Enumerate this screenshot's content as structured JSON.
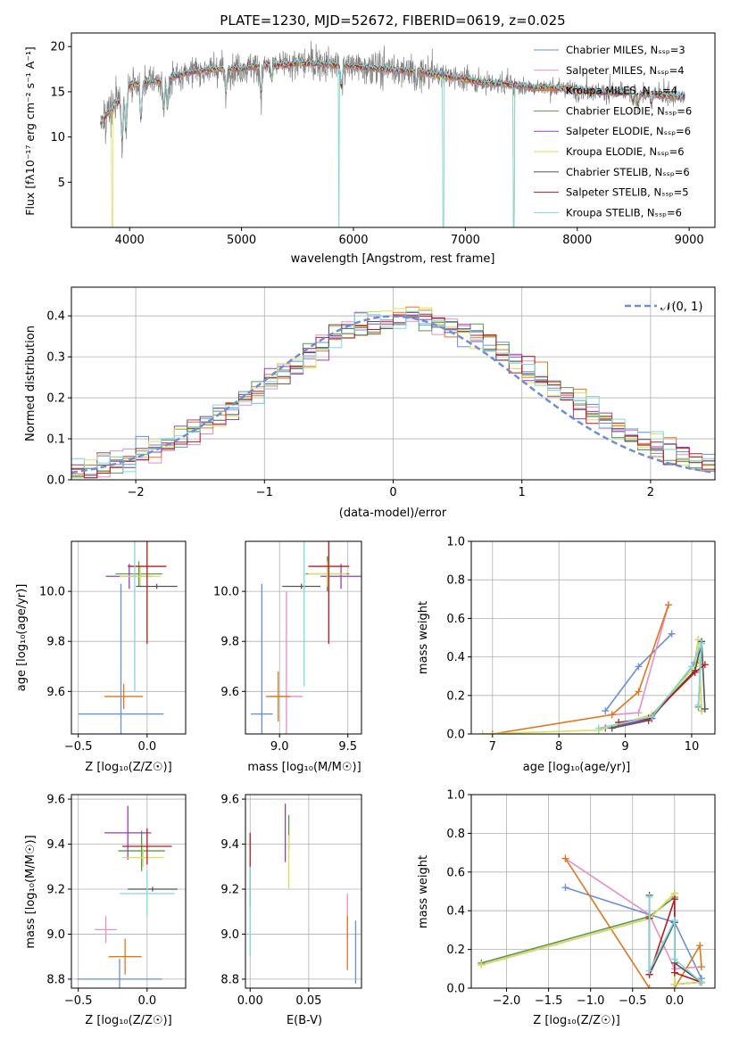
{
  "colors": [
    "#6a8fd4",
    "#e88fc4",
    "#e0771f",
    "#5a9a4a",
    "#9b3db5",
    "#d9e05a",
    "#555555",
    "#b81c1c",
    "#7fd8e0"
  ],
  "chart_data": [
    {
      "id": "spectrum",
      "type": "line",
      "title": "PLATE=1230, MJD=52672, FIBERID=0619, z=0.025",
      "xlabel": "wavelength [Angstrom, rest frame]",
      "ylabel": "Flux [fλ10⁻¹⁷ erg cm⁻² s⁻¹ A⁻¹]",
      "xlim": [
        3480,
        9230
      ],
      "ylim": [
        0,
        21.5
      ],
      "xticks": [
        "4000",
        "5000",
        "6000",
        "7000",
        "8000",
        "9000"
      ],
      "xtick_values": [
        4000,
        5000,
        6000,
        7000,
        8000,
        9000
      ],
      "yticks": [
        "5",
        "10",
        "15",
        "20"
      ],
      "ytick_values": [
        5,
        10,
        15,
        20
      ],
      "data_color": "#808080",
      "continuum": {
        "x": [
          3740,
          3800,
          3900,
          4000,
          4100,
          4200,
          4300,
          4400,
          4600,
          4800,
          5000,
          5200,
          5400,
          5600,
          5800,
          6000,
          6200,
          6400,
          6600,
          6800,
          7000,
          7200,
          7400,
          7600,
          7800,
          8000,
          8200,
          8400,
          8600,
          8800,
          8960
        ],
        "y": [
          11.5,
          12.5,
          13.8,
          15.8,
          16.0,
          16.2,
          16.0,
          16.8,
          17.3,
          17.5,
          17.6,
          17.9,
          18.0,
          18.2,
          18.0,
          17.8,
          17.6,
          17.4,
          17.2,
          16.8,
          16.4,
          16.0,
          15.8,
          15.5,
          15.4,
          15.2,
          15.0,
          14.9,
          14.8,
          14.6,
          14.4
        ]
      },
      "legend_position": "upper right",
      "legend": [
        "Chabrier MILES, Nₛₛₚ=3",
        "Salpeter MILES, Nₛₛₚ=4",
        "Kroupa MILES, Nₛₛₚ=4",
        "Chabrier ELODIE, Nₛₛₚ=6",
        "Salpeter ELODIE, Nₛₛₚ=6",
        "Kroupa ELODIE, Nₛₛₚ=6",
        "Chabrier STELIB, Nₛₛₚ=6",
        "Salpeter STELIB, Nₛₛₚ=5",
        "Kroupa STELIB, Nₛₛₚ=6"
      ]
    },
    {
      "id": "residuals",
      "type": "line",
      "xlabel": "(data-model)/error",
      "ylabel": "Normed distribution",
      "xlim": [
        -2.5,
        2.5
      ],
      "ylim": [
        0,
        0.47
      ],
      "xticks": [
        "−2",
        "−1",
        "0",
        "1",
        "2"
      ],
      "xtick_values": [
        -2,
        -1,
        0,
        1,
        2
      ],
      "yticks": [
        "0.0",
        "0.1",
        "0.2",
        "0.3",
        "0.4"
      ],
      "ytick_values": [
        0,
        0.1,
        0.2,
        0.3,
        0.4
      ],
      "grid": true,
      "legend": [
        "𝒩(0, 1)"
      ],
      "legend_position": "upper right",
      "bin_width": 0.1
    },
    {
      "id": "age-vs-z",
      "type": "scatter",
      "xlabel": "Z [log₁₀(Z/Z☉)]",
      "ylabel": "age  [log₁₀(age/yr)]",
      "xlim": [
        -0.55,
        0.28
      ],
      "ylim": [
        9.43,
        10.2
      ],
      "xticks": [
        "−0.5",
        "0.0"
      ],
      "xtick_values": [
        -0.5,
        0
      ],
      "yticks": [
        "9.6",
        "9.8",
        "10.0"
      ],
      "ytick_values": [
        9.6,
        9.8,
        10.0
      ],
      "grid": true,
      "points": [
        {
          "x": -0.19,
          "y": 9.51,
          "xerr": 0.31,
          "yerr": 0.52
        },
        {
          "x": -0.22,
          "y": 10.0,
          "xerr": 0.0,
          "yerr": 0.0
        },
        {
          "x": -0.17,
          "y": 9.58,
          "xerr": 0.14,
          "yerr": 0.05
        },
        {
          "x": -0.06,
          "y": 10.07,
          "xerr": 0.17,
          "yerr": 0.05
        },
        {
          "x": -0.13,
          "y": 10.06,
          "xerr": 0.17,
          "yerr": 0.05
        },
        {
          "x": -0.05,
          "y": 10.06,
          "xerr": 0.15,
          "yerr": 0.04
        },
        {
          "x": 0.07,
          "y": 10.02,
          "xerr": 0.15,
          "yerr": 0.01
        },
        {
          "x": 0.0,
          "y": 10.1,
          "xerr": 0.14,
          "yerr": 0.31
        },
        {
          "x": -0.09,
          "y": 10.05,
          "xerr": 0.0,
          "yerr": 0.45
        }
      ]
    },
    {
      "id": "age-vs-mass",
      "type": "scatter",
      "xlabel": "mass [log₁₀(M/M☉)]",
      "ylabel": "",
      "xlim": [
        8.75,
        9.6
      ],
      "ylim": [
        9.43,
        10.2
      ],
      "xticks": [
        "9.0",
        "9.5"
      ],
      "xtick_values": [
        9.0,
        9.5
      ],
      "yticks": [
        "9.6",
        "9.8",
        "10.0"
      ],
      "ytick_values": [
        9.6,
        9.8,
        10.0
      ],
      "grid": true,
      "points": [
        {
          "x": 8.87,
          "y": 9.51,
          "xerr": 0.08,
          "yerr": 0.52
        },
        {
          "x": 9.05,
          "y": 9.58,
          "xerr": 0.12,
          "yerr": 0.42
        },
        {
          "x": 8.99,
          "y": 9.58,
          "xerr": 0.09,
          "yerr": 0.1
        },
        {
          "x": 9.35,
          "y": 10.07,
          "xerr": 0.16,
          "yerr": 0.07
        },
        {
          "x": 9.45,
          "y": 10.06,
          "xerr": 0.15,
          "yerr": 0.05
        },
        {
          "x": 9.35,
          "y": 10.07,
          "xerr": 0.14,
          "yerr": 0.05
        },
        {
          "x": 9.16,
          "y": 10.02,
          "xerr": 0.14,
          "yerr": 0.01
        },
        {
          "x": 9.36,
          "y": 10.1,
          "xerr": 0.15,
          "yerr": 0.31
        },
        {
          "x": 9.18,
          "y": 10.05,
          "xerr": 0.0,
          "yerr": 0.43
        }
      ]
    },
    {
      "id": "weight-vs-age",
      "type": "line",
      "xlabel": "age  [log₁₀(age/yr)]",
      "ylabel": "mass weight",
      "xlim": [
        6.68,
        10.35
      ],
      "ylim": [
        0,
        1.0
      ],
      "xticks": [
        "7",
        "8",
        "9",
        "10"
      ],
      "xtick_values": [
        7,
        8,
        9,
        10
      ],
      "yticks": [
        "0.0",
        "0.2",
        "0.4",
        "0.6",
        "0.8",
        "1.0"
      ],
      "ytick_values": [
        0,
        0.2,
        0.4,
        0.6,
        0.8,
        1.0
      ],
      "grid": true,
      "series": [
        {
          "x": [
            8.7,
            9.2,
            9.7
          ],
          "values": [
            0.12,
            0.35,
            0.52
          ]
        },
        {
          "x": [
            8.8,
            9.2,
            9.65
          ],
          "values": [
            0.1,
            0.11,
            0.67
          ]
        },
        {
          "x": [
            7.0,
            8.8,
            9.2,
            9.65
          ],
          "values": [
            0.0,
            0.1,
            0.22,
            0.67
          ]
        },
        {
          "x": [
            8.6,
            9.4,
            10.05,
            10.15,
            10.1
          ],
          "values": [
            0.02,
            0.1,
            0.33,
            0.47,
            0.14
          ]
        },
        {
          "x": [
            8.7,
            9.4,
            10.05,
            10.1,
            10.15
          ],
          "values": [
            0.03,
            0.08,
            0.37,
            0.49,
            0.12
          ]
        },
        {
          "x": [
            6.85,
            8.6,
            9.4,
            10.05,
            10.1,
            10.15
          ],
          "values": [
            0.0,
            0.02,
            0.1,
            0.35,
            0.49,
            0.12
          ]
        },
        {
          "x": [
            8.8,
            9.35,
            10.05,
            10.15,
            10.2
          ],
          "values": [
            0.03,
            0.07,
            0.33,
            0.48,
            0.13
          ]
        },
        {
          "x": [
            8.9,
            9.35,
            10.05,
            10.2
          ],
          "values": [
            0.06,
            0.08,
            0.32,
            0.36
          ]
        },
        {
          "x": [
            8.6,
            9.4,
            10.0,
            10.15,
            10.1
          ],
          "values": [
            0.03,
            0.09,
            0.35,
            0.47,
            0.15
          ]
        }
      ]
    },
    {
      "id": "mass-vs-z",
      "type": "scatter",
      "xlabel": "Z [log₁₀(Z/Z☉)]",
      "ylabel": "mass [log₁₀(M/M☉)]",
      "xlim": [
        -0.55,
        0.28
      ],
      "ylim": [
        8.76,
        9.62
      ],
      "xticks": [
        "−0.5",
        "0.0"
      ],
      "xtick_values": [
        -0.5,
        0
      ],
      "yticks": [
        "8.8",
        "9.0",
        "9.2",
        "9.4",
        "9.6"
      ],
      "ytick_values": [
        8.8,
        9.0,
        9.2,
        9.4,
        9.6
      ],
      "grid": true,
      "points": [
        {
          "x": -0.2,
          "y": 8.8,
          "xerr": 0.31,
          "yerr": 0.09
        },
        {
          "x": -0.3,
          "y": 9.02,
          "xerr": 0.08,
          "yerr": 0.06
        },
        {
          "x": -0.16,
          "y": 8.9,
          "xerr": 0.12,
          "yerr": 0.08
        },
        {
          "x": -0.04,
          "y": 9.37,
          "xerr": 0.17,
          "yerr": 0.09
        },
        {
          "x": -0.14,
          "y": 9.45,
          "xerr": 0.17,
          "yerr": 0.12
        },
        {
          "x": -0.03,
          "y": 9.34,
          "xerr": 0.15,
          "yerr": 0.04
        },
        {
          "x": 0.04,
          "y": 9.2,
          "xerr": 0.18,
          "yerr": 0.01
        },
        {
          "x": 0.0,
          "y": 9.39,
          "xerr": 0.18,
          "yerr": 0.08
        },
        {
          "x": 0.0,
          "y": 9.18,
          "xerr": 0.2,
          "yerr": 0.1
        }
      ]
    },
    {
      "id": "mass-vs-ebv",
      "type": "scatter",
      "xlabel": "E(B-V)",
      "ylabel": "",
      "xlim": [
        -0.004,
        0.095
      ],
      "ylim": [
        8.76,
        9.62
      ],
      "xticks": [
        "0.00",
        "0.05"
      ],
      "xtick_values": [
        0.0,
        0.05
      ],
      "yticks": [
        "8.8",
        "9.0",
        "9.2",
        "9.4",
        "9.6"
      ],
      "ytick_values": [
        8.8,
        9.0,
        9.2,
        9.4,
        9.6
      ],
      "grid": true,
      "points": [
        {
          "x": 0.09,
          "y": 8.92,
          "xerr": 0.0,
          "yerr": 0.14
        },
        {
          "x": 0.083,
          "y": 9.08,
          "xerr": 0.0,
          "yerr": 0.1
        },
        {
          "x": 0.083,
          "y": 8.96,
          "xerr": 0.0,
          "yerr": 0.12
        },
        {
          "x": 0.033,
          "y": 9.45,
          "xerr": 0.0,
          "yerr": 0.08
        },
        {
          "x": 0.03,
          "y": 9.45,
          "xerr": 0.0,
          "yerr": 0.13
        },
        {
          "x": 0.033,
          "y": 9.32,
          "xerr": 0.0,
          "yerr": 0.12
        },
        {
          "x": 0.0,
          "y": 9.2,
          "xerr": 0.0,
          "yerr": 0.08
        },
        {
          "x": 0.0,
          "y": 9.36,
          "xerr": 0.0,
          "yerr": 0.09
        },
        {
          "x": 0.0,
          "y": 9.1,
          "xerr": 0.0,
          "yerr": 0.2
        }
      ]
    },
    {
      "id": "weight-vs-z",
      "type": "line",
      "xlabel": "Z [log₁₀(Z/Z☉)]",
      "ylabel": "mass weight",
      "xlim": [
        -2.42,
        0.48
      ],
      "ylim": [
        0,
        1.0
      ],
      "xticks": [
        "−2.0",
        "−1.5",
        "−1.0",
        "−0.5",
        "0.0"
      ],
      "xtick_values": [
        -2.0,
        -1.5,
        -1.0,
        -0.5,
        0.0
      ],
      "yticks": [
        "0.0",
        "0.2",
        "0.4",
        "0.6",
        "0.8",
        "1.0"
      ],
      "ytick_values": [
        0,
        0.2,
        0.4,
        0.6,
        0.8,
        1.0
      ],
      "grid": true,
      "series": [
        {
          "x": [
            -1.3,
            -0.3,
            0.0,
            0.32
          ],
          "values": [
            0.52,
            0.38,
            0.34,
            0.05
          ]
        },
        {
          "x": [
            -1.3,
            -0.3,
            0.0,
            0.32
          ],
          "values": [
            0.67,
            0.38,
            0.1,
            0.11
          ]
        },
        {
          "x": [
            -1.3,
            -0.3,
            0.0,
            0.3,
            0.32
          ],
          "values": [
            0.67,
            0.0,
            0.0,
            0.22,
            0.11
          ]
        },
        {
          "x": [
            -2.3,
            -0.3,
            0.0,
            0.0,
            0.3
          ],
          "values": [
            0.13,
            0.37,
            0.47,
            0.02,
            0.03
          ]
        },
        {
          "x": [
            -2.3,
            -0.3,
            0.0,
            0.0,
            0.3
          ],
          "values": [
            0.12,
            0.36,
            0.49,
            0.02,
            0.03
          ]
        },
        {
          "x": [
            -2.3,
            -0.3,
            0.0,
            0.0,
            0.3
          ],
          "values": [
            0.12,
            0.36,
            0.49,
            0.02,
            0.03
          ]
        },
        {
          "x": [
            -0.3,
            -0.3,
            0.0,
            0.0,
            0.32
          ],
          "values": [
            0.48,
            0.07,
            0.34,
            0.13,
            0.03
          ]
        },
        {
          "x": [
            -0.3,
            -0.3,
            0.0,
            0.0,
            0.32
          ],
          "values": [
            0.36,
            0.07,
            0.46,
            0.08,
            0.03
          ]
        },
        {
          "x": [
            -0.3,
            -0.3,
            0.0,
            0.0,
            0.32
          ],
          "values": [
            0.47,
            0.09,
            0.35,
            0.15,
            0.03
          ]
        }
      ]
    }
  ]
}
